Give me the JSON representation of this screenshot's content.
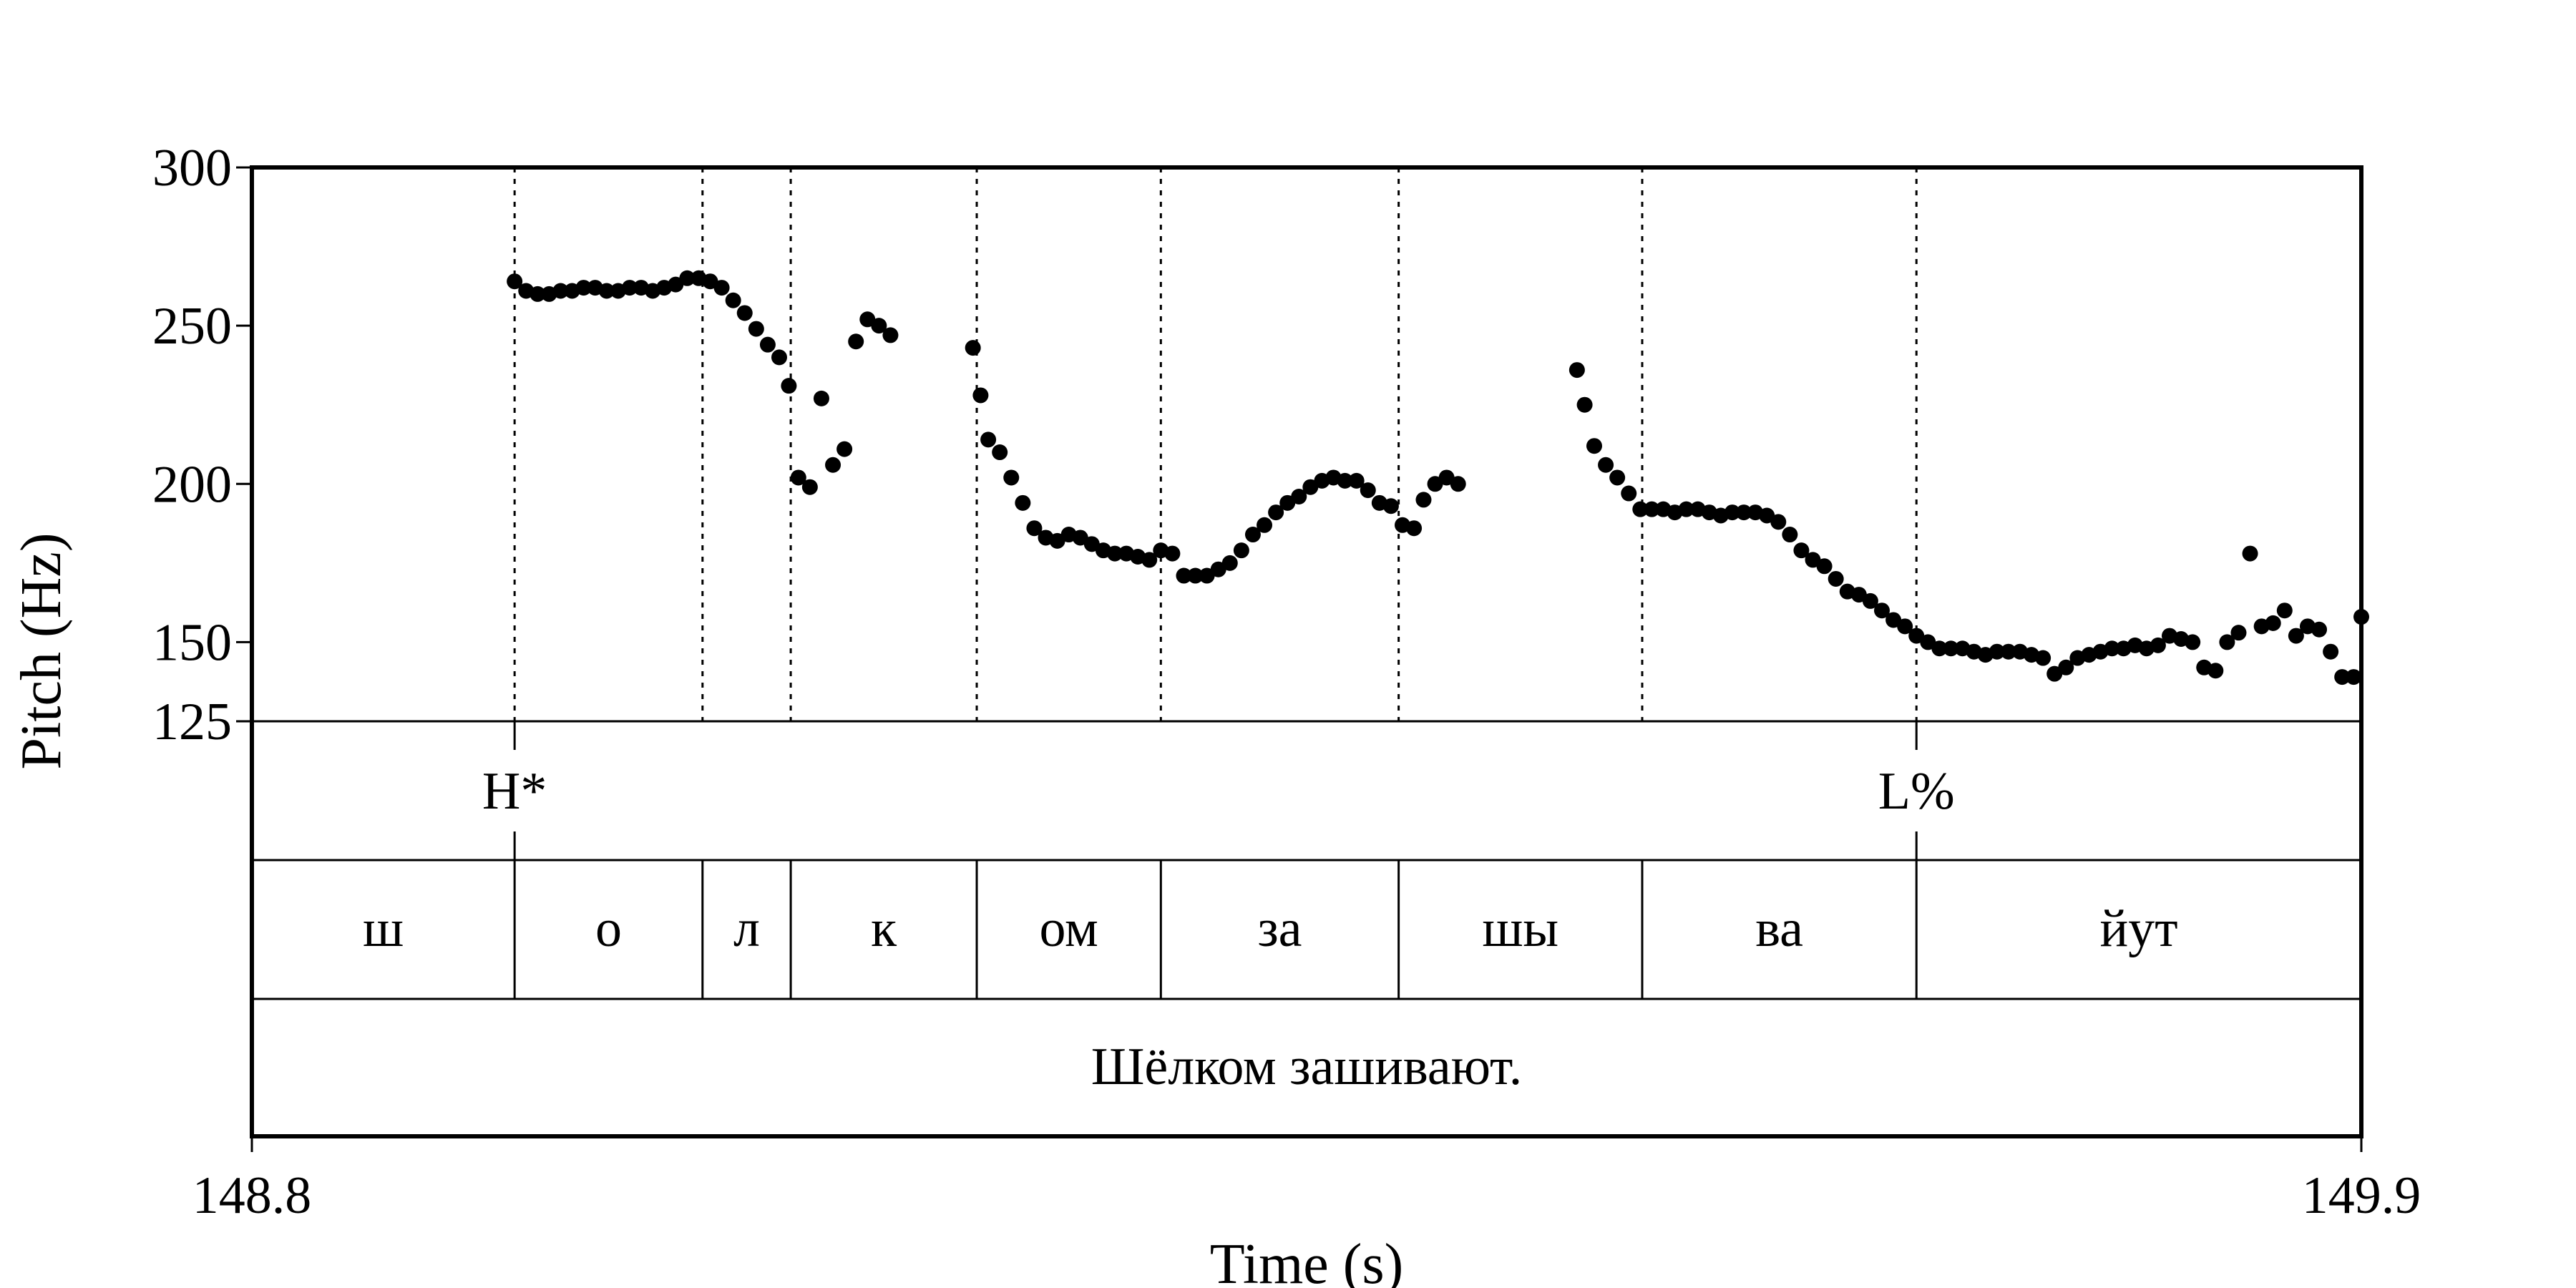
{
  "chart_data": {
    "type": "scatter",
    "xlabel": "Time (s)",
    "ylabel": "Pitch (Hz)",
    "xlim": [
      148.8,
      149.9
    ],
    "ylim": [
      125,
      300
    ],
    "x_ticks": [
      "148.8",
      "149.9"
    ],
    "y_ticks": [
      "125",
      "150",
      "200",
      "250",
      "300"
    ],
    "grid": false,
    "series": [
      {
        "points": [
          [
            148.937,
            264
          ],
          [
            148.943,
            261
          ],
          [
            148.949,
            260
          ],
          [
            148.955,
            260
          ],
          [
            148.961,
            261
          ],
          [
            148.967,
            261
          ],
          [
            148.973,
            262
          ],
          [
            148.979,
            262
          ],
          [
            148.985,
            261
          ],
          [
            148.991,
            261
          ],
          [
            148.997,
            262
          ],
          [
            149.003,
            262
          ],
          [
            149.009,
            261
          ],
          [
            149.015,
            262
          ],
          [
            149.021,
            263
          ],
          [
            149.027,
            265
          ],
          [
            149.033,
            265
          ],
          [
            149.039,
            264
          ],
          [
            149.045,
            262
          ],
          [
            149.051,
            258
          ],
          [
            149.057,
            254
          ],
          [
            149.063,
            249
          ],
          [
            149.069,
            244
          ],
          [
            149.075,
            240
          ],
          [
            149.08,
            231
          ],
          [
            149.085,
            202
          ],
          [
            149.091,
            199
          ],
          [
            149.097,
            227
          ],
          [
            149.103,
            206
          ],
          [
            149.109,
            211
          ],
          [
            149.115,
            245
          ],
          [
            149.121,
            252
          ],
          [
            149.127,
            250
          ],
          [
            149.133,
            247
          ],
          [
            149.176,
            243
          ],
          [
            149.18,
            228
          ],
          [
            149.184,
            214
          ],
          [
            149.19,
            210
          ],
          [
            149.196,
            202
          ],
          [
            149.202,
            194
          ],
          [
            149.208,
            186
          ],
          [
            149.214,
            183
          ],
          [
            149.22,
            182
          ],
          [
            149.226,
            184
          ],
          [
            149.232,
            183
          ],
          [
            149.238,
            181
          ],
          [
            149.244,
            179
          ],
          [
            149.25,
            178
          ],
          [
            149.256,
            178
          ],
          [
            149.262,
            177
          ],
          [
            149.268,
            176
          ],
          [
            149.274,
            179
          ],
          [
            149.28,
            178
          ],
          [
            149.286,
            171
          ],
          [
            149.292,
            171
          ],
          [
            149.298,
            171
          ],
          [
            149.304,
            173
          ],
          [
            149.31,
            175
          ],
          [
            149.316,
            179
          ],
          [
            149.322,
            184
          ],
          [
            149.328,
            187
          ],
          [
            149.334,
            191
          ],
          [
            149.34,
            194
          ],
          [
            149.346,
            196
          ],
          [
            149.352,
            199
          ],
          [
            149.358,
            201
          ],
          [
            149.364,
            202
          ],
          [
            149.37,
            201
          ],
          [
            149.376,
            201
          ],
          [
            149.382,
            198
          ],
          [
            149.388,
            194
          ],
          [
            149.394,
            193
          ],
          [
            149.4,
            187
          ],
          [
            149.406,
            186
          ],
          [
            149.411,
            195
          ],
          [
            149.417,
            200
          ],
          [
            149.423,
            202
          ],
          [
            149.429,
            200
          ],
          [
            149.491,
            236
          ],
          [
            149.495,
            225
          ],
          [
            149.5,
            212
          ],
          [
            149.506,
            206
          ],
          [
            149.512,
            202
          ],
          [
            149.518,
            197
          ],
          [
            149.524,
            192
          ],
          [
            149.53,
            192
          ],
          [
            149.536,
            192
          ],
          [
            149.542,
            191
          ],
          [
            149.548,
            192
          ],
          [
            149.554,
            192
          ],
          [
            149.56,
            191
          ],
          [
            149.566,
            190
          ],
          [
            149.572,
            191
          ],
          [
            149.578,
            191
          ],
          [
            149.584,
            191
          ],
          [
            149.59,
            190
          ],
          [
            149.596,
            188
          ],
          [
            149.602,
            184
          ],
          [
            149.608,
            179
          ],
          [
            149.614,
            176
          ],
          [
            149.62,
            174
          ],
          [
            149.626,
            170
          ],
          [
            149.632,
            166
          ],
          [
            149.638,
            165
          ],
          [
            149.644,
            163
          ],
          [
            149.65,
            160
          ],
          [
            149.656,
            157
          ],
          [
            149.662,
            155
          ],
          [
            149.668,
            152
          ],
          [
            149.674,
            150
          ],
          [
            149.68,
            148
          ],
          [
            149.686,
            148
          ],
          [
            149.692,
            148
          ],
          [
            149.698,
            147
          ],
          [
            149.704,
            146
          ],
          [
            149.71,
            147
          ],
          [
            149.716,
            147
          ],
          [
            149.722,
            147
          ],
          [
            149.728,
            146
          ],
          [
            149.734,
            145
          ],
          [
            149.74,
            140
          ],
          [
            149.746,
            142
          ],
          [
            149.752,
            145
          ],
          [
            149.758,
            146
          ],
          [
            149.764,
            147
          ],
          [
            149.77,
            148
          ],
          [
            149.776,
            148
          ],
          [
            149.782,
            149
          ],
          [
            149.788,
            148
          ],
          [
            149.794,
            149
          ],
          [
            149.8,
            152
          ],
          [
            149.806,
            151
          ],
          [
            149.812,
            150
          ],
          [
            149.818,
            142
          ],
          [
            149.824,
            141
          ],
          [
            149.83,
            150
          ],
          [
            149.836,
            153
          ],
          [
            149.842,
            178
          ],
          [
            149.848,
            155
          ],
          [
            149.854,
            156
          ],
          [
            149.86,
            160
          ],
          [
            149.866,
            152
          ],
          [
            149.872,
            155
          ],
          [
            149.878,
            154
          ],
          [
            149.884,
            147
          ],
          [
            149.89,
            139
          ],
          [
            149.896,
            139
          ],
          [
            149.9,
            158
          ]
        ]
      }
    ],
    "guide_lines_at": [
      148.937,
      149.035,
      149.081,
      149.178,
      149.274,
      149.398,
      149.525,
      149.668
    ]
  },
  "tiers": {
    "tones": [
      {
        "time": 148.937,
        "label": "H*"
      },
      {
        "time": 149.668,
        "label": "L%"
      }
    ],
    "syllables": [
      {
        "start": 148.8,
        "end": 148.937,
        "label": "ш"
      },
      {
        "start": 148.937,
        "end": 149.035,
        "label": "о"
      },
      {
        "start": 149.035,
        "end": 149.081,
        "label": "л"
      },
      {
        "start": 149.081,
        "end": 149.178,
        "label": "к"
      },
      {
        "start": 149.178,
        "end": 149.274,
        "label": "ом"
      },
      {
        "start": 149.274,
        "end": 149.398,
        "label": "за"
      },
      {
        "start": 149.398,
        "end": 149.525,
        "label": "шы"
      },
      {
        "start": 149.525,
        "end": 149.668,
        "label": "ва"
      },
      {
        "start": 149.668,
        "end": 149.9,
        "label": "йут"
      }
    ],
    "sentence": "Шёлком зашивают."
  }
}
